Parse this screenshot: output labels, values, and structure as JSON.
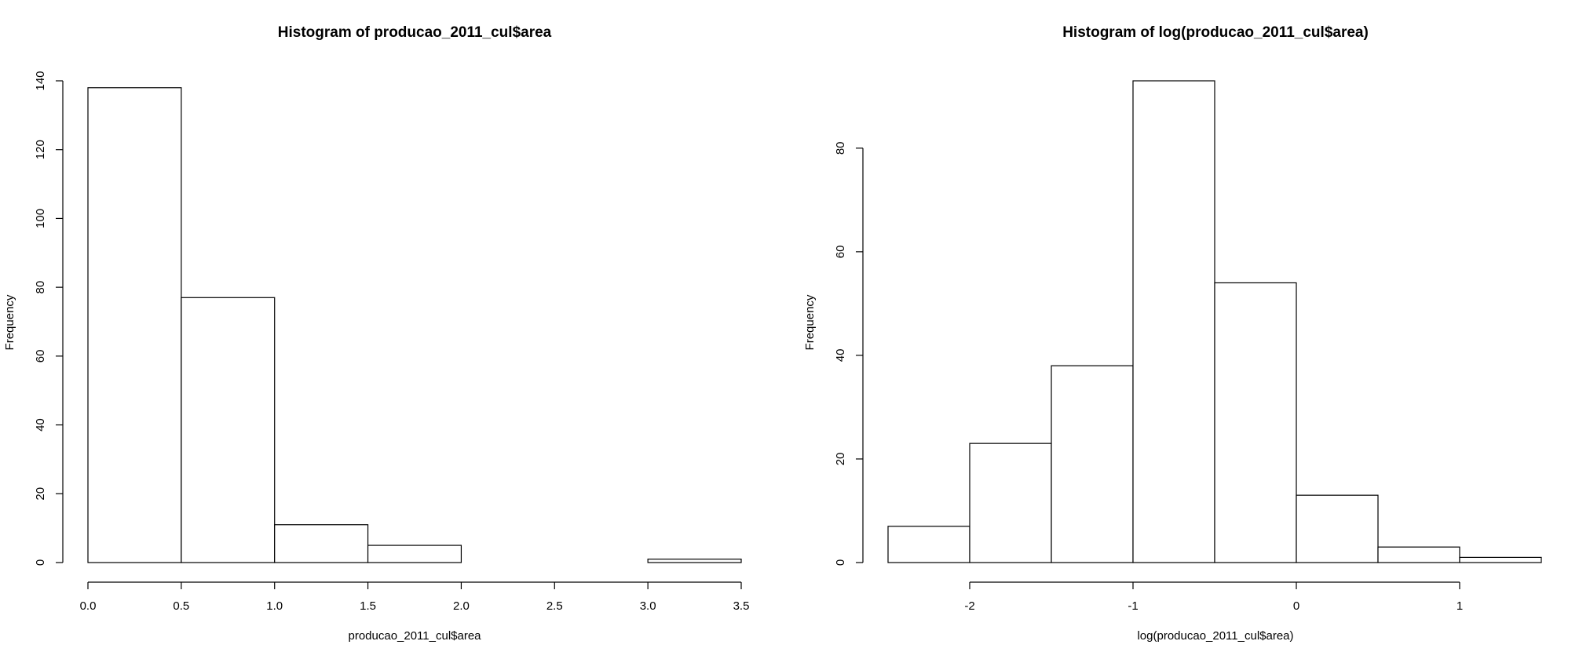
{
  "chart_data": [
    {
      "type": "bar",
      "title": "Histogram of producao_2011_cul$area",
      "xlabel": "producao_2011_cul$area",
      "ylabel": "Frequency",
      "bins": [
        {
          "start": 0.0,
          "end": 0.5,
          "value": 138
        },
        {
          "start": 0.5,
          "end": 1.0,
          "value": 77
        },
        {
          "start": 1.0,
          "end": 1.5,
          "value": 11
        },
        {
          "start": 1.5,
          "end": 2.0,
          "value": 5
        },
        {
          "start": 2.0,
          "end": 2.5,
          "value": 0
        },
        {
          "start": 2.5,
          "end": 3.0,
          "value": 0
        },
        {
          "start": 3.0,
          "end": 3.5,
          "value": 1
        }
      ],
      "xlim": [
        0,
        3.5
      ],
      "ylim": [
        0,
        140
      ],
      "xticks": [
        "0.0",
        "0.5",
        "1.0",
        "1.5",
        "2.0",
        "2.5",
        "3.0",
        "3.5"
      ],
      "yticks": [
        "0",
        "20",
        "40",
        "60",
        "80",
        "100",
        "120",
        "140"
      ],
      "grid": false
    },
    {
      "type": "bar",
      "title": "Histogram of log(producao_2011_cul$area)",
      "xlabel": "log(producao_2011_cul$area)",
      "ylabel": "Frequency",
      "bins": [
        {
          "start": -2.5,
          "end": -2.0,
          "value": 7
        },
        {
          "start": -2.0,
          "end": -1.5,
          "value": 23
        },
        {
          "start": -1.5,
          "end": -1.0,
          "value": 38
        },
        {
          "start": -1.0,
          "end": -0.5,
          "value": 93
        },
        {
          "start": -0.5,
          "end": 0.0,
          "value": 54
        },
        {
          "start": 0.0,
          "end": 0.5,
          "value": 13
        },
        {
          "start": 0.5,
          "end": 1.0,
          "value": 3
        },
        {
          "start": 1.0,
          "end": 1.5,
          "value": 1
        }
      ],
      "xlim": [
        -2.5,
        1.5
      ],
      "ylim": [
        0,
        93
      ],
      "xticks": [
        "-2",
        "-1",
        "0",
        "1"
      ],
      "yticks": [
        "0",
        "20",
        "40",
        "60",
        "80"
      ],
      "grid": false
    }
  ]
}
